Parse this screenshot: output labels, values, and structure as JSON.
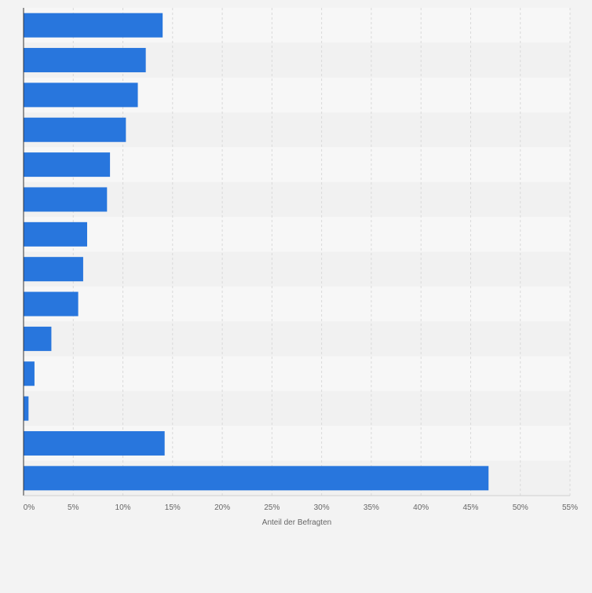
{
  "chart_data": {
    "type": "bar",
    "orientation": "horizontal",
    "title": "",
    "xlabel": "Anteil der Befragten",
    "ylabel": "",
    "xlim": [
      0,
      55
    ],
    "x_ticks": [
      0,
      5,
      10,
      15,
      20,
      25,
      30,
      35,
      40,
      45,
      50,
      55
    ],
    "tick_suffix": "%",
    "grid": true,
    "legend": "none",
    "categories": [
      "",
      "",
      "",
      "",
      "",
      "",
      "",
      "",
      "",
      "",
      "",
      "",
      "",
      ""
    ],
    "values": [
      14.0,
      12.3,
      11.5,
      10.3,
      8.7,
      8.4,
      6.4,
      6.0,
      5.5,
      2.8,
      1.1,
      0.5,
      14.2,
      46.8
    ],
    "colors": {
      "bar": "#2876dd",
      "band_light": "#f7f7f7",
      "band_dark": "#f1f1f1",
      "page": "#f3f3f3",
      "grid": "#d9d9d9",
      "axis": "#333333",
      "tick_text": "#666666"
    }
  }
}
